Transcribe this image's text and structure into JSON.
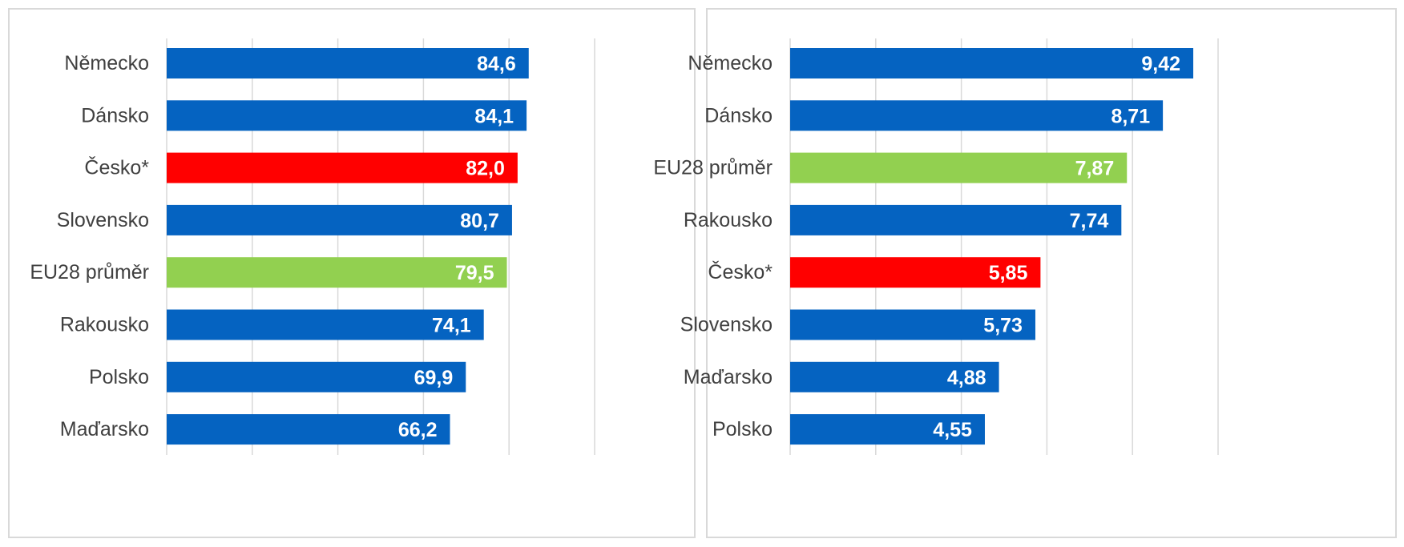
{
  "chart_data": [
    {
      "type": "bar",
      "orientation": "horizontal",
      "title": "",
      "xlabel": "",
      "ylabel": "",
      "xlim": [
        0,
        100
      ],
      "grid": true,
      "categories": [
        "Německo",
        "Dánsko",
        "Česko*",
        "Slovensko",
        "EU28 průměr",
        "Rakousko",
        "Polsko",
        "Maďarsko"
      ],
      "values": [
        84.6,
        84.1,
        82.0,
        80.7,
        79.5,
        74.1,
        69.9,
        66.2
      ],
      "value_labels": [
        "84,6",
        "84,1",
        "82,0",
        "80,7",
        "79,5",
        "74,1",
        "69,9",
        "66,2"
      ],
      "colors": [
        "#0563c1",
        "#0563c1",
        "#ff0000",
        "#0563c1",
        "#92d050",
        "#0563c1",
        "#0563c1",
        "#0563c1"
      ]
    },
    {
      "type": "bar",
      "orientation": "horizontal",
      "title": "",
      "xlabel": "",
      "ylabel": "",
      "xlim": [
        0,
        10
      ],
      "grid": true,
      "categories": [
        "Německo",
        "Dánsko",
        "EU28 průměr",
        "Rakousko",
        "Česko*",
        "Slovensko",
        "Maďarsko",
        "Polsko"
      ],
      "values": [
        9.42,
        8.71,
        7.87,
        7.74,
        5.85,
        5.73,
        4.88,
        4.55
      ],
      "value_labels": [
        "9,42",
        "8,71",
        "7,87",
        "7,74",
        "5,85",
        "5,73",
        "4,88",
        "4,55"
      ],
      "colors": [
        "#0563c1",
        "#0563c1",
        "#92d050",
        "#0563c1",
        "#ff0000",
        "#0563c1",
        "#0563c1",
        "#0563c1"
      ]
    }
  ]
}
